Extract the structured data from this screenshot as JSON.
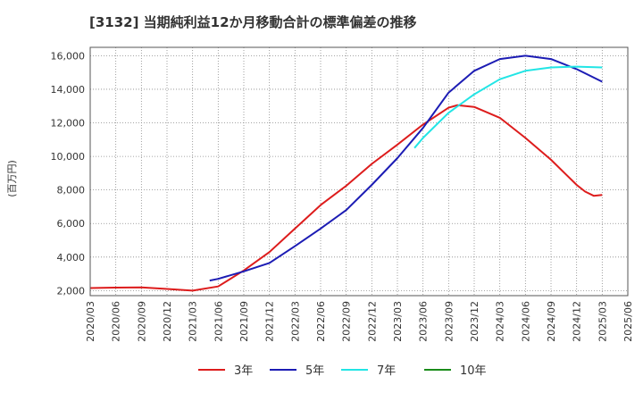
{
  "chart_data": {
    "type": "line",
    "title": "[3132]  当期純利益12か月移動合計の標準偏差の推移",
    "ylabel": "(百万円)",
    "xlabel": "",
    "ylim": [
      1700,
      16500
    ],
    "yticks": [
      2000,
      4000,
      6000,
      8000,
      10000,
      12000,
      14000,
      16000
    ],
    "ytick_labels": [
      "2,000",
      "4,000",
      "6,000",
      "8,000",
      "10,000",
      "12,000",
      "14,000",
      "16,000"
    ],
    "xticks": [
      "2020/03",
      "2020/06",
      "2020/09",
      "2020/12",
      "2021/03",
      "2021/06",
      "2021/09",
      "2021/12",
      "2022/03",
      "2022/06",
      "2022/09",
      "2022/12",
      "2023/03",
      "2023/06",
      "2023/09",
      "2023/12",
      "2024/03",
      "2024/06",
      "2024/09",
      "2024/12",
      "2025/03",
      "2025/06"
    ],
    "grid": true,
    "legend_position": "bottom",
    "series": [
      {
        "name": "3年",
        "color": "#dd1c1c",
        "x": [
          "2020/03",
          "2020/06",
          "2020/09",
          "2020/12",
          "2021/03",
          "2021/06",
          "2021/09",
          "2021/12",
          "2022/03",
          "2022/06",
          "2022/09",
          "2022/12",
          "2023/03",
          "2023/06",
          "2023/09",
          "2023/10",
          "2023/12",
          "2024/03",
          "2024/06",
          "2024/09",
          "2024/12",
          "2025/01",
          "2025/02",
          "2025/03"
        ],
        "values": [
          2150,
          2180,
          2190,
          2100,
          2000,
          2250,
          3200,
          4300,
          5700,
          7100,
          8250,
          9550,
          10700,
          11900,
          12900,
          13050,
          12950,
          12300,
          11100,
          9800,
          8300,
          7900,
          7650,
          7700
        ]
      },
      {
        "name": "5年",
        "color": "#1c1cb4",
        "x": [
          "2021/05",
          "2021/06",
          "2021/09",
          "2021/12",
          "2022/03",
          "2022/06",
          "2022/09",
          "2022/12",
          "2023/03",
          "2023/06",
          "2023/09",
          "2023/12",
          "2024/03",
          "2024/06",
          "2024/09",
          "2024/12",
          "2025/03"
        ],
        "values": [
          2600,
          2700,
          3150,
          3650,
          4650,
          5700,
          6800,
          8300,
          9900,
          11700,
          13800,
          15100,
          15800,
          16000,
          15800,
          15200,
          14450
        ]
      },
      {
        "name": "7年",
        "color": "#22e5e5",
        "x": [
          "2023/05",
          "2023/06",
          "2023/09",
          "2023/12",
          "2024/03",
          "2024/06",
          "2024/09",
          "2024/12",
          "2025/03"
        ],
        "values": [
          10500,
          11100,
          12600,
          13700,
          14600,
          15100,
          15300,
          15350,
          15300
        ]
      },
      {
        "name": "10年",
        "color": "#1a8c1a",
        "x": [],
        "values": []
      }
    ]
  }
}
